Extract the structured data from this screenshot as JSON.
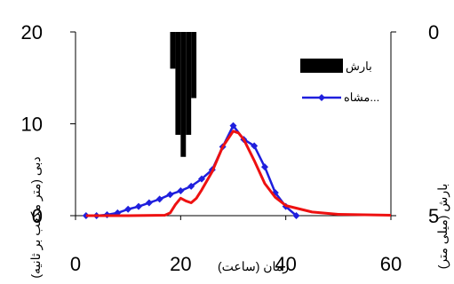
{
  "chart_data": {
    "type": "line",
    "xlabel": "زمان (ساعت)",
    "ylabel_left": "دبی (متر مکعب بر ثانیه)",
    "ylabel_right": "بارش (میلی متر)",
    "xlim": [
      0,
      60
    ],
    "ylim_left": [
      0,
      20
    ],
    "ylim_right_inverted": [
      0,
      5
    ],
    "x_ticks": [
      "0",
      "20",
      "40",
      "60"
    ],
    "y_left_ticks": [
      "0",
      "10",
      "20"
    ],
    "y_right_ticks": [
      "0",
      "5"
    ],
    "legend": {
      "position": "top-right",
      "entries": [
        "بارش",
        "مشاه..."
      ]
    },
    "series": [
      {
        "name": "مشاه...",
        "kind": "line-markers",
        "color": "#1f1fdd",
        "x": [
          2,
          4,
          6,
          8,
          10,
          12,
          14,
          16,
          18,
          20,
          22,
          24,
          26,
          28,
          30,
          32,
          34,
          36,
          38,
          40,
          42
        ],
        "y": [
          0,
          0,
          0.1,
          0.3,
          0.7,
          1.0,
          1.4,
          1.8,
          2.3,
          2.7,
          3.2,
          4.0,
          5.0,
          7.5,
          9.8,
          8.3,
          7.6,
          5.3,
          2.5,
          1.0,
          0
        ]
      },
      {
        "name": "",
        "kind": "line",
        "color": "#ee1111",
        "x": [
          2,
          10,
          17,
          18,
          19,
          20,
          21,
          22,
          23,
          24,
          26,
          28,
          30,
          31,
          32,
          34,
          36,
          38,
          40,
          45,
          50,
          60
        ],
        "y": [
          0,
          0,
          0.05,
          0.3,
          1.2,
          1.9,
          1.6,
          1.4,
          1.9,
          2.8,
          4.8,
          7.5,
          9.2,
          9.0,
          8.3,
          6.0,
          3.5,
          2.0,
          1.1,
          0.4,
          0.15,
          0.05
        ]
      },
      {
        "name": "بارش",
        "kind": "bar-inverted",
        "color": "#000000",
        "x": [
          18.5,
          19.5,
          20.5,
          21.5,
          22.5
        ],
        "y": [
          1.0,
          2.8,
          3.4,
          2.8,
          1.8
        ]
      }
    ]
  }
}
